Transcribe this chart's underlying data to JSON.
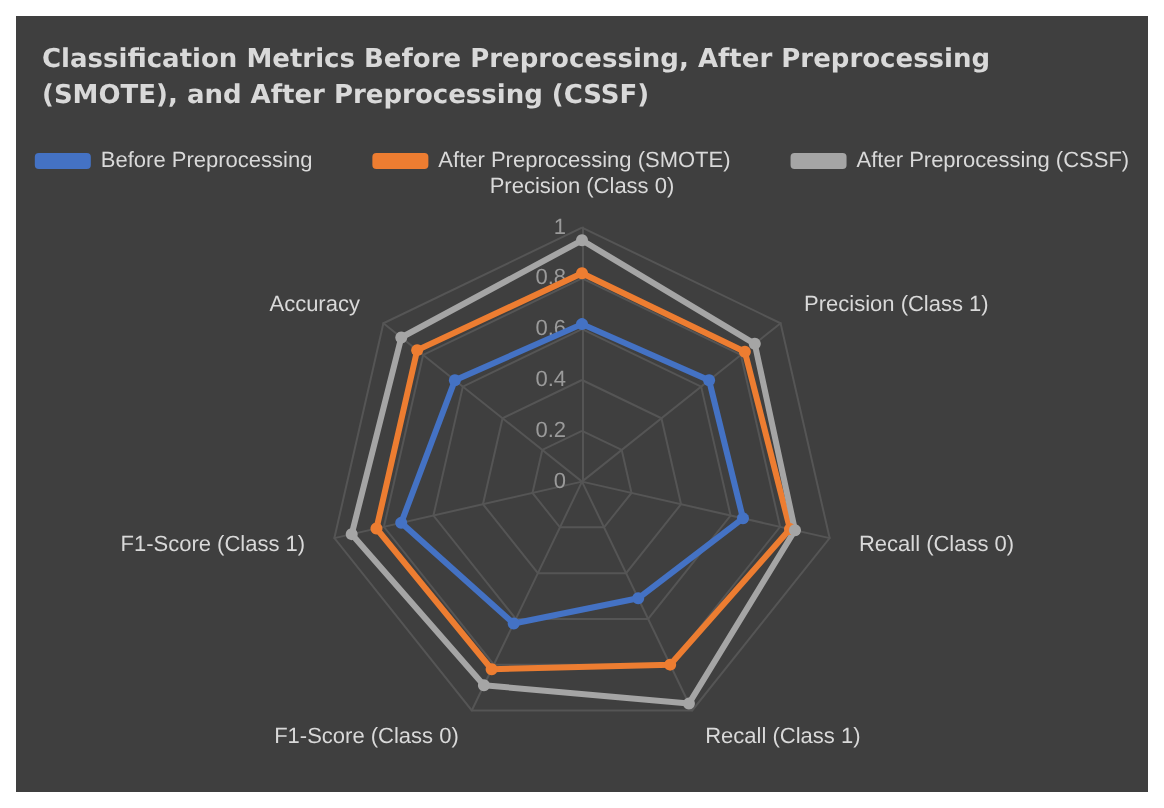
{
  "chart_data": {
    "type": "radar",
    "title": "Classification Metrics Before Preprocessing, After Preprocessing (SMOTE), and After Preprocessing (CSSF)",
    "categories": [
      "Precision (Class 0)",
      "Precision (Class 1)",
      "Recall (Class 0)",
      "Recall (Class 1)",
      "F1-Score (Class 0)",
      "F1-Score (Class 1)",
      "Accuracy"
    ],
    "series": [
      {
        "name": "Before Preprocessing",
        "color": "#4472c4",
        "values": [
          0.62,
          0.64,
          0.65,
          0.51,
          0.62,
          0.73,
          0.64
        ]
      },
      {
        "name": "After Preprocessing (SMOTE)",
        "color": "#ed7d31",
        "values": [
          0.82,
          0.82,
          0.84,
          0.8,
          0.82,
          0.83,
          0.83
        ]
      },
      {
        "name": "After Preprocessing (CSSF)",
        "color": "#a5a5a5",
        "values": [
          0.95,
          0.87,
          0.86,
          0.97,
          0.89,
          0.93,
          0.91
        ]
      }
    ],
    "ylim": [
      0,
      1
    ],
    "yticks": [
      0,
      0.2,
      0.4,
      0.6,
      0.8,
      1
    ],
    "legend": "top",
    "marker": "circle",
    "line_style": "solid",
    "grid": true
  }
}
